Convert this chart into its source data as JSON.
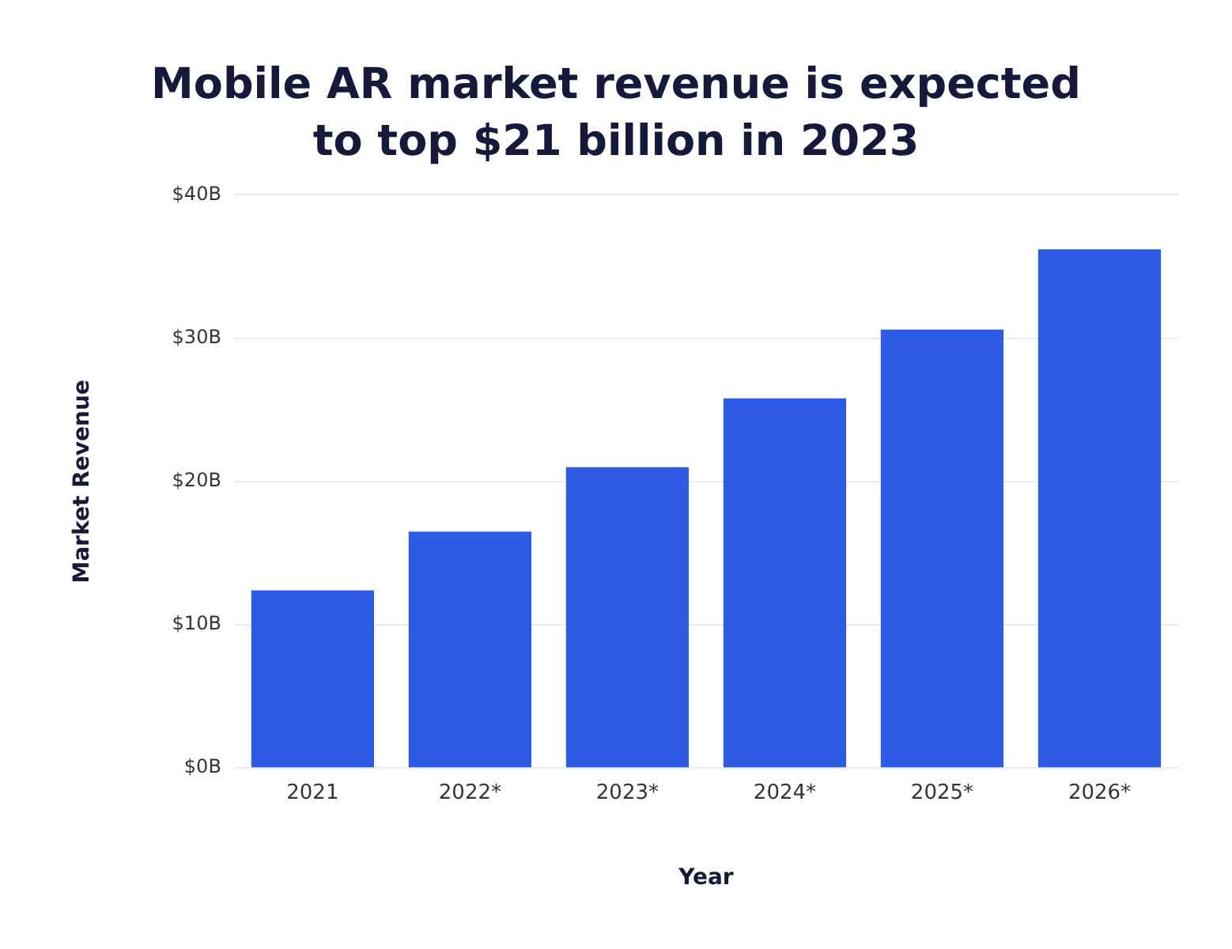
{
  "chart_data": {
    "type": "bar",
    "title": "Mobile AR market revenue is expected to top $21 billion in 2023",
    "xlabel": "Year",
    "ylabel": "Market Revenue",
    "categories": [
      "2021",
      "2022*",
      "2023*",
      "2024*",
      "2025*",
      "2026*"
    ],
    "values": [
      12.4,
      16.5,
      21.0,
      25.8,
      30.6,
      36.2
    ],
    "color": "#2d5be3",
    "ylim": [
      0,
      40
    ],
    "yticks": [
      {
        "value": 0,
        "label": "$0B"
      },
      {
        "value": 10,
        "label": "$10B"
      },
      {
        "value": 20,
        "label": "$20B"
      },
      {
        "value": 30,
        "label": "$30B"
      },
      {
        "value": 40,
        "label": "$40B"
      }
    ],
    "grid": "y"
  }
}
